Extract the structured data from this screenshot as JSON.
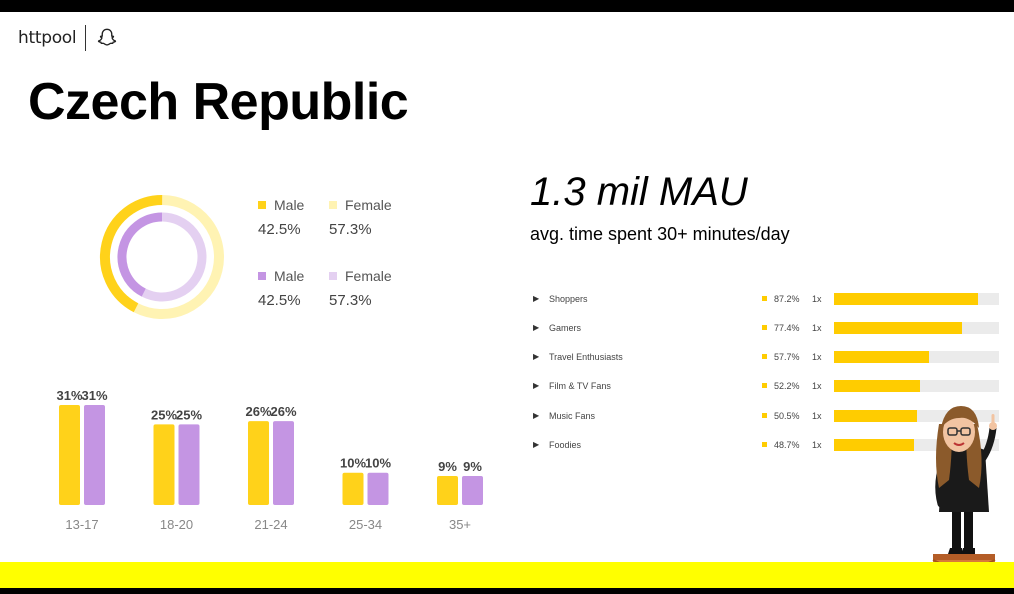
{
  "brand": {
    "logo_text": "httpool",
    "icon": "snapchat-ghost-icon"
  },
  "title": "Czech Republic",
  "gender": {
    "row1": {
      "male_label": "Male",
      "male_value": "42.5%",
      "female_label": "Female",
      "female_value": "57.3%"
    },
    "row2": {
      "male_label": "Male",
      "male_value": "42.5%",
      "female_label": "Female",
      "female_value": "57.3%"
    }
  },
  "mau": {
    "headline": "1.3 mil MAU",
    "subtitle": "avg. time spent 30+ minutes/day"
  },
  "interests": [
    {
      "name": "Shoppers",
      "percent_label": "87.2%",
      "multiplier": "1x",
      "value": 87.2
    },
    {
      "name": "Gamers",
      "percent_label": "77.4%",
      "multiplier": "1x",
      "value": 77.4
    },
    {
      "name": "Travel Enthusiasts",
      "percent_label": "57.7%",
      "multiplier": "1x",
      "value": 57.7
    },
    {
      "name": "Film & TV Fans",
      "percent_label": "52.2%",
      "multiplier": "1x",
      "value": 52.2
    },
    {
      "name": "Music Fans",
      "percent_label": "50.5%",
      "multiplier": "1x",
      "value": 50.5
    },
    {
      "name": "Foodies",
      "percent_label": "48.7%",
      "multiplier": "1x",
      "value": 48.7
    }
  ],
  "colors": {
    "yellow": "#ffd21a",
    "light_yellow": "#fff3b3",
    "purple": "#c495e3",
    "light_purple": "#e4d0f1",
    "accent_bar": "#ffff00"
  },
  "chart_data": [
    {
      "type": "pie",
      "variant": "nested-donut",
      "series": [
        {
          "name": "Male",
          "values": [
            42.5
          ]
        },
        {
          "name": "Female",
          "values": [
            57.3
          ]
        }
      ],
      "rings": [
        {
          "categories": [
            "Male",
            "Female"
          ],
          "values": [
            42.5,
            57.3
          ],
          "colors": [
            "#ffd21a",
            "#fff3b3"
          ]
        },
        {
          "categories": [
            "Male",
            "Female"
          ],
          "values": [
            42.5,
            57.3
          ],
          "colors": [
            "#c495e3",
            "#e4d0f1"
          ]
        }
      ]
    },
    {
      "type": "bar",
      "categories": [
        "13-17",
        "18-20",
        "21-24",
        "25-34",
        "35+"
      ],
      "series": [
        {
          "values": [
            31,
            25,
            26,
            10,
            9
          ],
          "color": "#ffd21a"
        },
        {
          "values": [
            31,
            25,
            26,
            10,
            9
          ],
          "color": "#c495e3"
        }
      ],
      "data_labels": [
        "31%",
        "25%",
        "26%",
        "10%",
        "9%"
      ],
      "ylim": [
        0,
        31
      ],
      "grid": false
    },
    {
      "type": "bar",
      "orientation": "horizontal",
      "categories": [
        "Shoppers",
        "Gamers",
        "Travel Enthusiasts",
        "Film & TV Fans",
        "Music Fans",
        "Foodies"
      ],
      "values": [
        87.2,
        77.4,
        57.7,
        52.2,
        50.5,
        48.7
      ],
      "xlim": [
        0,
        100
      ]
    }
  ]
}
